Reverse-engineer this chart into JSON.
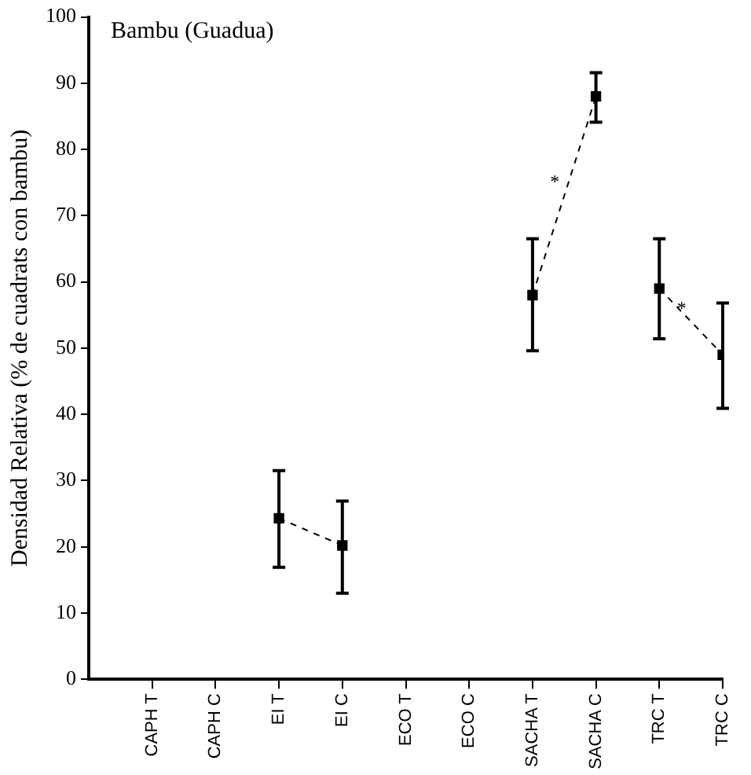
{
  "chart_data": {
    "type": "line",
    "title": "Bambu (Guadua)",
    "ylabel": "Densidad Relativa (% de cuadrats con bambu)",
    "categories": [
      "CAPH T",
      "CAPH C",
      "EI T",
      "EI C",
      "ECO T",
      "ECO C",
      "SACHA T",
      "SACHA C",
      "TRC T",
      "TRC C"
    ],
    "series": [
      {
        "color": "#000000",
        "values": [
          null,
          null,
          24.3,
          20.2,
          null,
          null,
          null,
          null,
          null,
          null
        ],
        "errors": [
          null,
          null,
          [
            16.9,
            31.5
          ],
          [
            13,
            26.9
          ],
          null,
          null,
          null,
          null,
          null,
          null
        ]
      },
      {
        "color": "#000000",
        "values": [
          null,
          null,
          null,
          null,
          null,
          null,
          58,
          88,
          null,
          null
        ],
        "errors": [
          null,
          null,
          null,
          null,
          null,
          null,
          [
            49.6,
            66.5
          ],
          [
            84.1,
            91.6
          ],
          null,
          null
        ]
      },
      {
        "color": "#000000",
        "values": [
          null,
          null,
          null,
          null,
          null,
          null,
          null,
          null,
          59,
          49
        ],
        "errors": [
          null,
          null,
          null,
          null,
          null,
          null,
          null,
          null,
          [
            51.4,
            66.5
          ],
          [
            40.9,
            56.8
          ]
        ]
      }
    ],
    "annotations": [
      "*",
      "*"
    ],
    "ylim": [
      0,
      100
    ],
    "yticks": [
      0,
      10,
      20,
      30,
      40,
      50,
      60,
      70,
      80,
      90,
      100
    ],
    "grid": false,
    "legend": false,
    "marker": "square",
    "line_style": "dashed"
  }
}
